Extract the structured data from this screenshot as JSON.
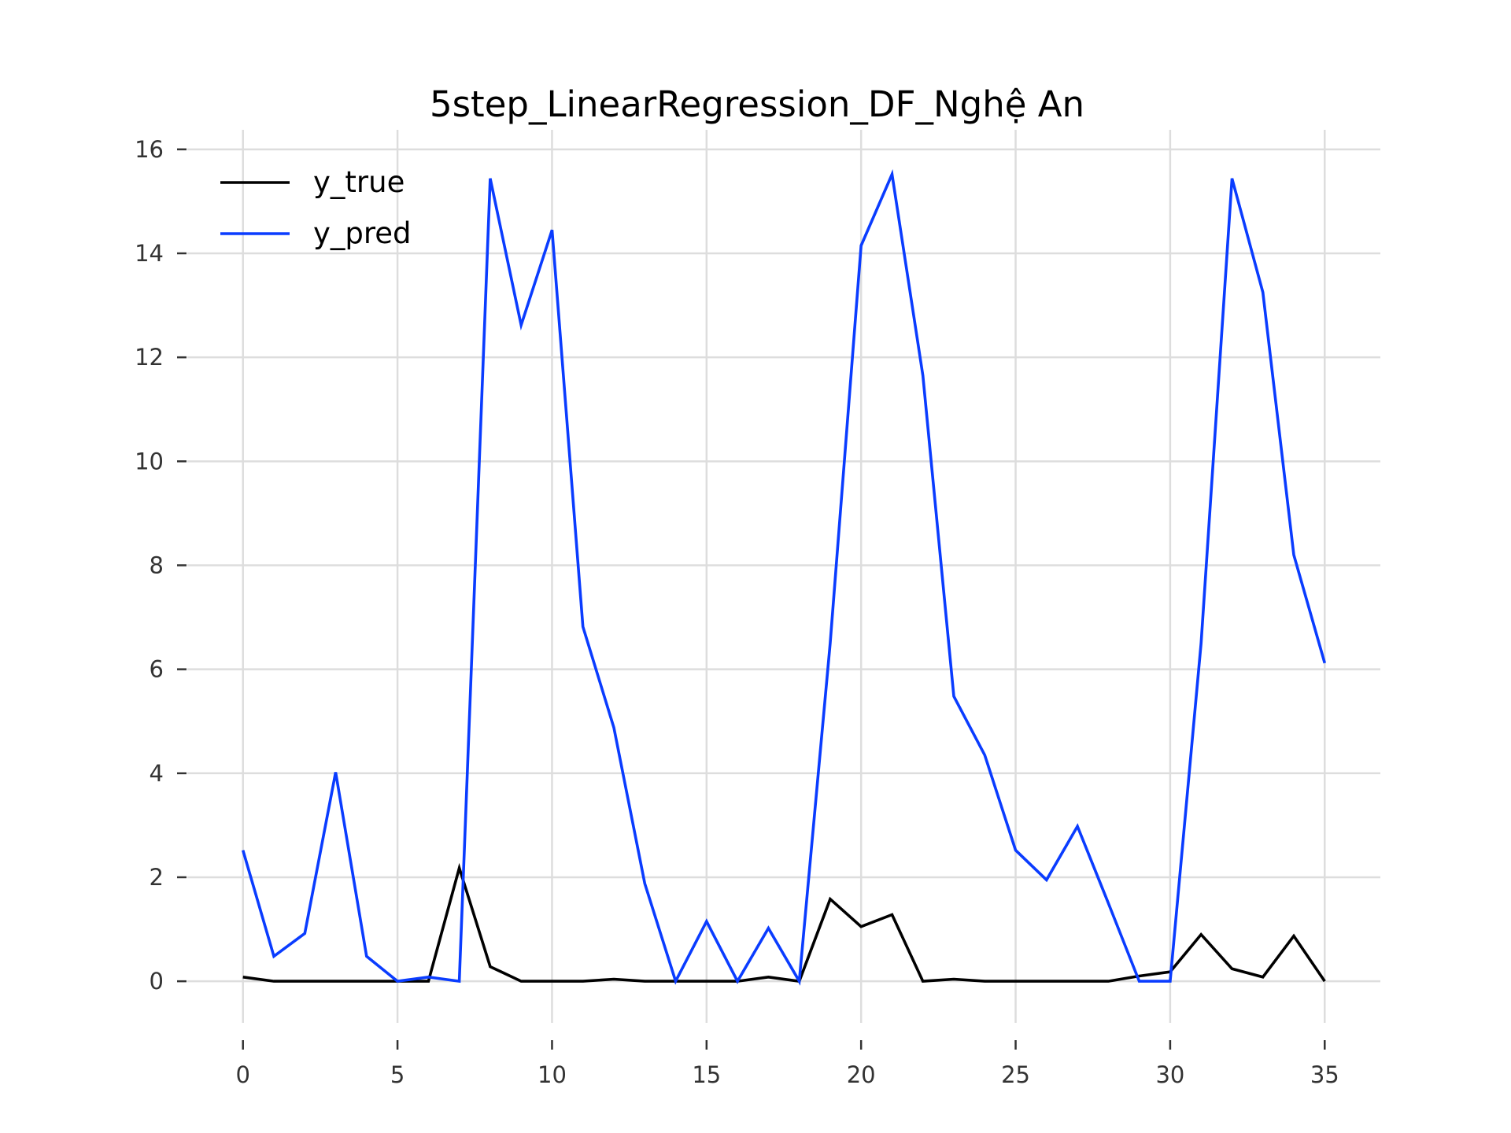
{
  "chart_data": {
    "type": "line",
    "title": "5step_LinearRegression_DF_Nghệ An",
    "xlabel": "",
    "ylabel": "",
    "xlim": [
      -1.75,
      36.75
    ],
    "ylim": [
      -0.8,
      16.3
    ],
    "xticks": [
      0,
      5,
      10,
      15,
      20,
      25,
      30,
      35
    ],
    "yticks": [
      0,
      2,
      4,
      6,
      8,
      10,
      12,
      14,
      16
    ],
    "grid": true,
    "legend_position": "upper-left",
    "x": [
      0,
      1,
      2,
      3,
      4,
      5,
      6,
      7,
      8,
      9,
      10,
      11,
      12,
      13,
      14,
      15,
      16,
      17,
      18,
      19,
      20,
      21,
      22,
      23,
      24,
      25,
      26,
      27,
      28,
      29,
      30,
      31,
      32,
      33,
      34,
      35
    ],
    "series": [
      {
        "name": "y_true",
        "color": "#000000",
        "values": [
          0.08,
          0,
          0,
          0,
          0,
          0,
          0,
          2.18,
          0.28,
          0,
          0,
          0,
          0.04,
          0,
          0,
          0,
          0,
          0.08,
          0,
          1.58,
          1.05,
          1.28,
          0,
          0.04,
          0,
          0,
          0,
          0,
          0,
          0.1,
          0.18,
          0.9,
          0.24,
          0.08,
          0.87,
          0
        ]
      },
      {
        "name": "y_pred",
        "color": "#0a3cff",
        "values": [
          2.52,
          0.48,
          0.92,
          4.02,
          0.48,
          0,
          0.08,
          0,
          15.44,
          12.62,
          14.45,
          6.82,
          4.88,
          1.88,
          0,
          1.15,
          0,
          1.02,
          0,
          6.5,
          14.15,
          15.52,
          11.65,
          5.48,
          4.35,
          2.52,
          1.95,
          2.98,
          1.5,
          0,
          0,
          6.5,
          15.44,
          13.25,
          8.2,
          6.12
        ]
      }
    ]
  }
}
